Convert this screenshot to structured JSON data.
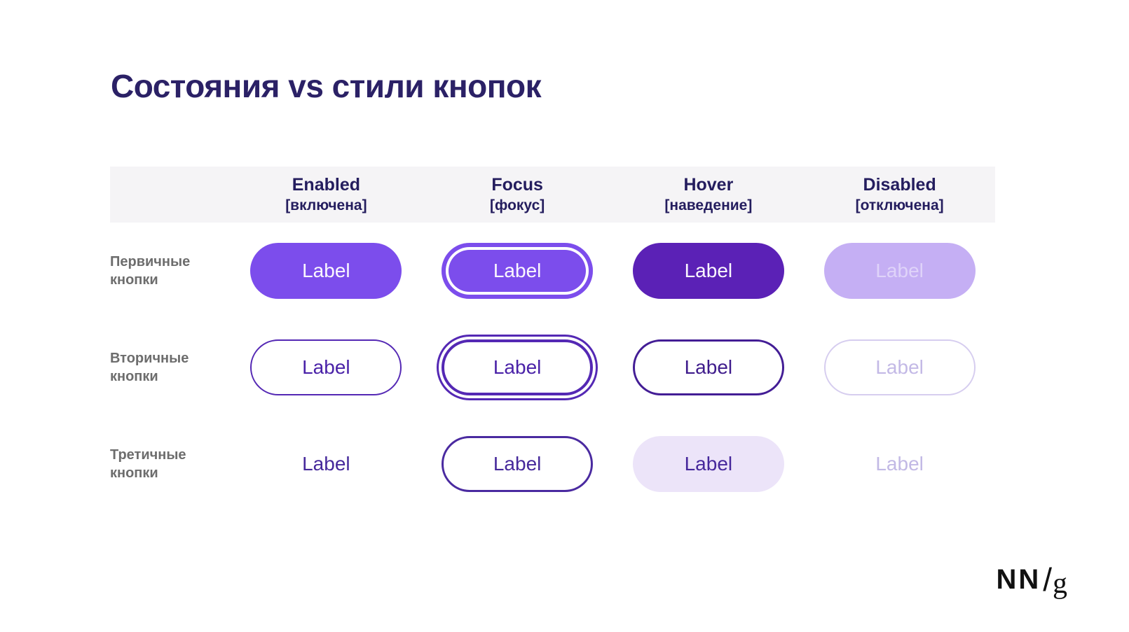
{
  "title": "Состояния vs стили кнопок",
  "table": {
    "columns": [
      {
        "en": "Enabled",
        "ru": "[включена]"
      },
      {
        "en": "Focus",
        "ru": "[фокус]"
      },
      {
        "en": "Hover",
        "ru": "[наведение]"
      },
      {
        "en": "Disabled",
        "ru": "[отключена]"
      }
    ],
    "rows": [
      {
        "label": "Первичные кнопки",
        "cells": [
          {
            "state": "enabled",
            "label": "Label"
          },
          {
            "state": "focus",
            "label": "Label"
          },
          {
            "state": "hover",
            "label": "Label"
          },
          {
            "state": "disabled",
            "label": "Label"
          }
        ]
      },
      {
        "label": "Вторичные кнопки",
        "cells": [
          {
            "state": "enabled",
            "label": "Label"
          },
          {
            "state": "focus",
            "label": "Label"
          },
          {
            "state": "hover",
            "label": "Label"
          },
          {
            "state": "disabled",
            "label": "Label"
          }
        ]
      },
      {
        "label": "Третичные кнопки",
        "cells": [
          {
            "state": "enabled",
            "label": "Label"
          },
          {
            "state": "focus",
            "label": "Label"
          },
          {
            "state": "hover",
            "label": "Label"
          },
          {
            "state": "disabled",
            "label": "Label"
          }
        ]
      }
    ]
  },
  "logo": {
    "nn": "NN",
    "slash": "/",
    "g": "g"
  },
  "colors": {
    "title_text": "#2B2166",
    "header_text": "#241D5E",
    "header_band": "#F5F4F6",
    "row_label_text": "#6D6D6D",
    "primary_enabled_fill": "#7C4DEC",
    "primary_hover_fill": "#5B21B6",
    "primary_disabled_fill": "#C5AFF4",
    "primary_disabled_text": "#DFD3F9",
    "secondary_outline": "#5428B4",
    "secondary_hover_outline": "#431D95",
    "disabled_outline": "#D6CDEF",
    "disabled_text": "#C3B9E6",
    "tertiary_text": "#46299B",
    "tertiary_hover_fill": "#ECE4F9",
    "logo_text": "#111111"
  }
}
